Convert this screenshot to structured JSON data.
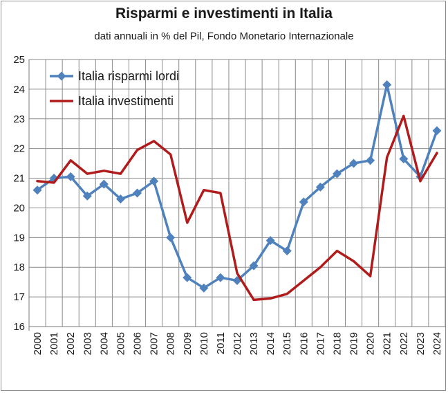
{
  "chart_data": {
    "type": "line",
    "title": "Risparmi e investimenti in Italia",
    "subtitle": "dati annuali in % del Pil, Fondo Monetario Internazionale",
    "xlabel": "",
    "ylabel": "",
    "ylim": [
      16,
      25
    ],
    "yticks": [
      "16",
      "17",
      "18",
      "19",
      "20",
      "21",
      "22",
      "23",
      "24",
      "25"
    ],
    "categories": [
      "2000",
      "2001",
      "2002",
      "2003",
      "2004",
      "2005",
      "2006",
      "2007",
      "2008",
      "2009",
      "2010",
      "2011",
      "2012",
      "2013",
      "2014",
      "2015",
      "2016",
      "2017",
      "2018",
      "2019",
      "2020",
      "2021",
      "2022",
      "2023",
      "2024"
    ],
    "grid": true,
    "legend_position": "top-left",
    "series": [
      {
        "name": "Italia risparmi lordi",
        "color": "#4f81bd",
        "marker": "diamond",
        "values": [
          20.6,
          21.0,
          21.05,
          20.4,
          20.8,
          20.3,
          20.5,
          20.9,
          19.0,
          17.65,
          17.3,
          17.65,
          17.55,
          18.05,
          18.9,
          18.55,
          20.2,
          20.7,
          21.15,
          21.5,
          21.6,
          24.15,
          21.65,
          21.05,
          22.6
        ]
      },
      {
        "name": "Italia investimenti",
        "color": "#b01c1c",
        "marker": "none",
        "values": [
          20.9,
          20.85,
          21.6,
          21.15,
          21.25,
          21.15,
          21.95,
          22.25,
          21.8,
          19.5,
          20.6,
          20.5,
          17.8,
          16.9,
          16.95,
          17.1,
          17.55,
          18.0,
          18.55,
          18.2,
          17.7,
          21.7,
          23.1,
          20.9,
          21.85
        ]
      }
    ]
  }
}
